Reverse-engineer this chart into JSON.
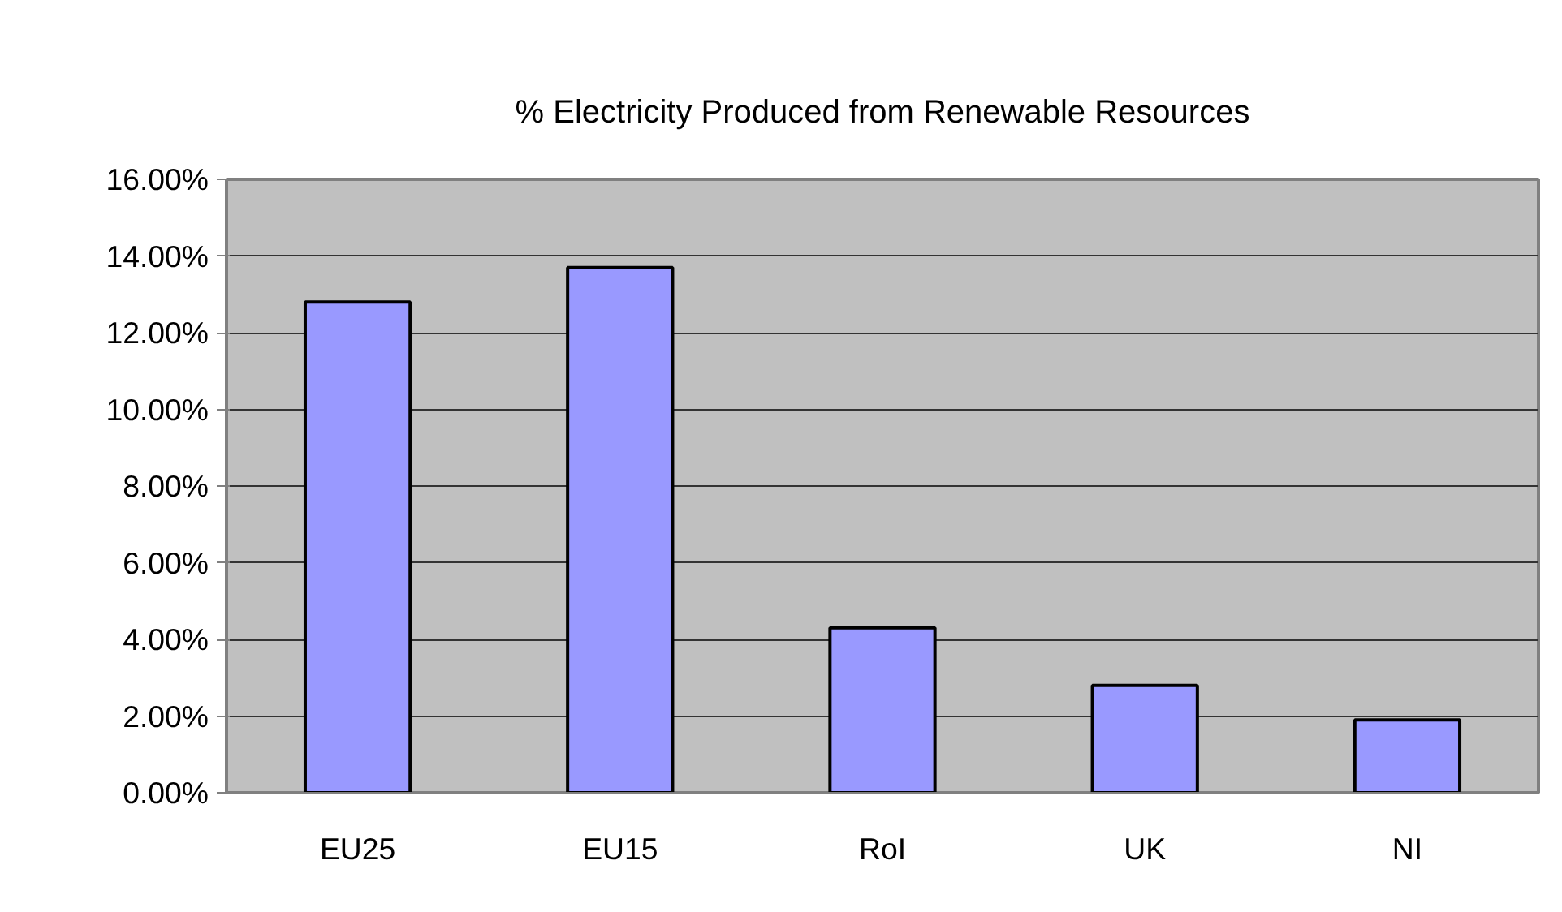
{
  "chart_data": {
    "type": "bar",
    "title": "% Electricity Produced from Renewable Resources",
    "categories": [
      "EU25",
      "EU15",
      "RoI",
      "UK",
      "NI"
    ],
    "values": [
      12.8,
      13.7,
      4.3,
      2.8,
      1.9
    ],
    "color": "#9999ff",
    "ylim": [
      0,
      16
    ],
    "yticks": [
      {
        "value": 0,
        "label": "0.00%"
      },
      {
        "value": 2,
        "label": "2.00%"
      },
      {
        "value": 4,
        "label": "4.00%"
      },
      {
        "value": 6,
        "label": "6.00%"
      },
      {
        "value": 8,
        "label": "8.00%"
      },
      {
        "value": 10,
        "label": "10.00%"
      },
      {
        "value": 12,
        "label": "12.00%"
      },
      {
        "value": 14,
        "label": "14.00%"
      },
      {
        "value": 16,
        "label": "16.00%"
      }
    ],
    "grid": "y"
  }
}
